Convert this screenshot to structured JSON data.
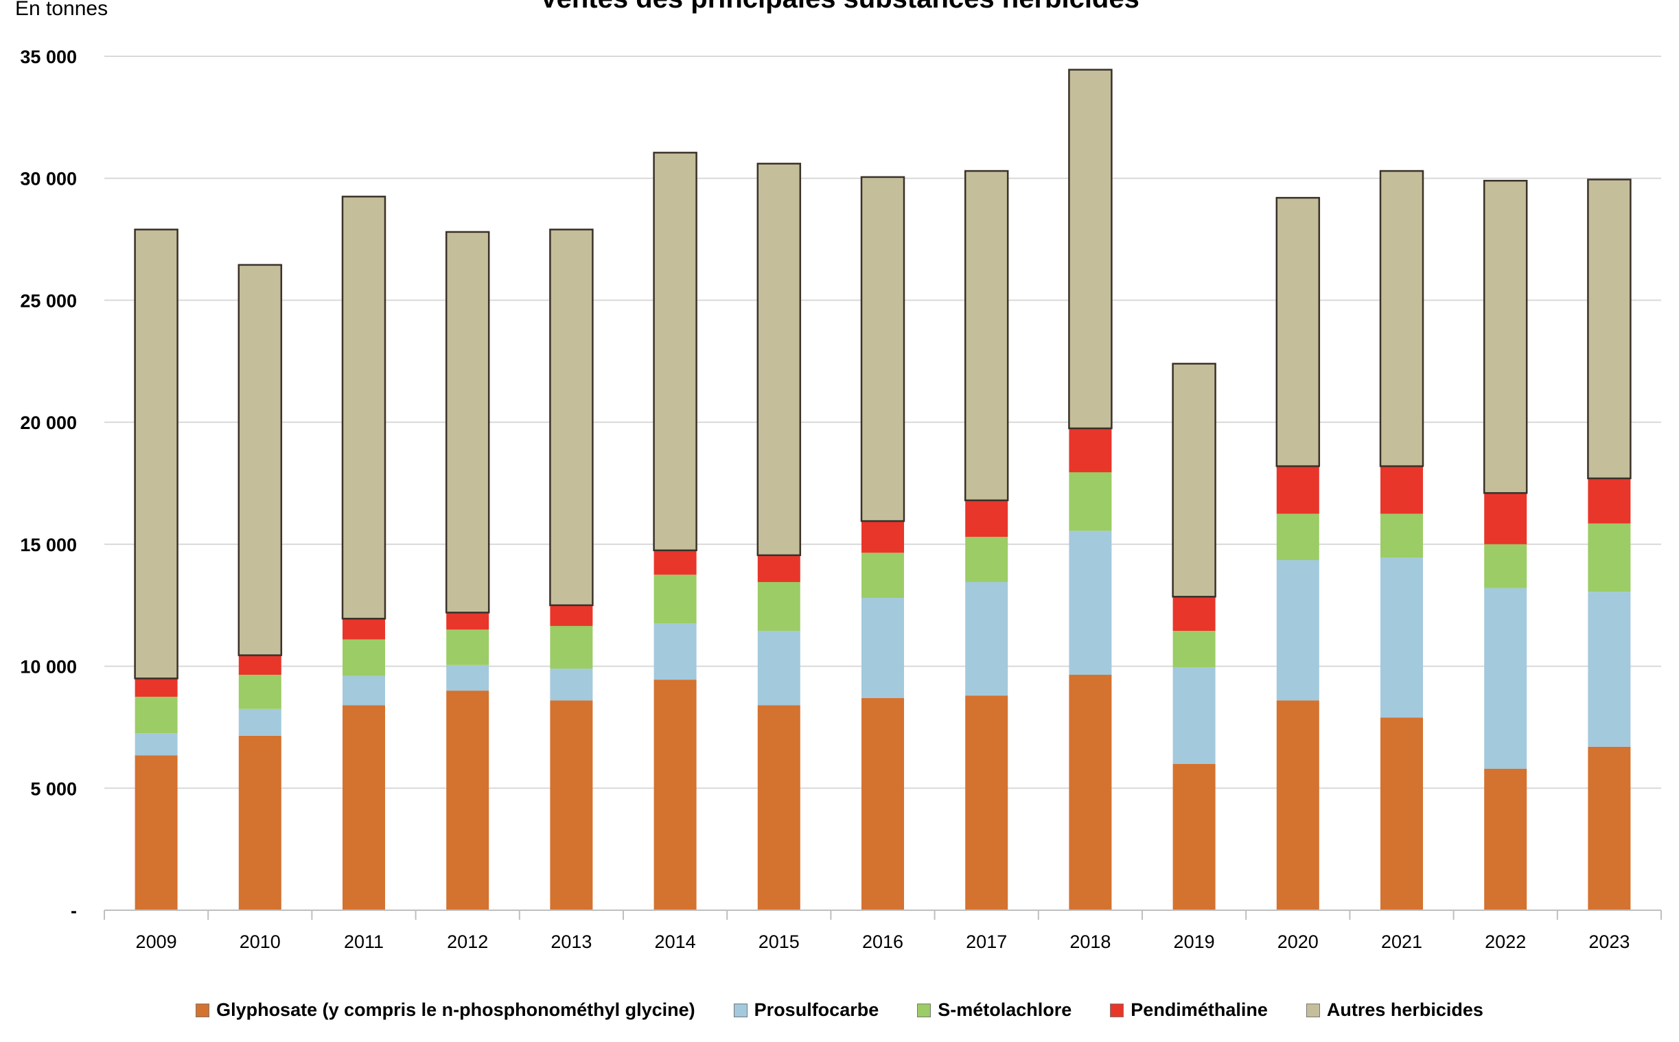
{
  "chart_data": {
    "type": "bar",
    "stacked": true,
    "title": "Ventes des principales substances herbicides",
    "ylabel": "En tonnes",
    "xlabel": "",
    "ylim": [
      0,
      35000
    ],
    "y_ticks": [
      0,
      5000,
      10000,
      15000,
      20000,
      25000,
      30000,
      35000
    ],
    "y_tick_labels": [
      "-",
      "5 000",
      "10 000",
      "15 000",
      "20 000",
      "25 000",
      "30 000",
      "35 000"
    ],
    "grid": true,
    "legend_position": "bottom",
    "categories": [
      "2009",
      "2010",
      "2011",
      "2012",
      "2013",
      "2014",
      "2015",
      "2016",
      "2017",
      "2018",
      "2019",
      "2020",
      "2021",
      "2022",
      "2023"
    ],
    "series": [
      {
        "name": "Glyphosate (y compris le n-phosphonométhyl glycine)",
        "color": "#D4722F",
        "values": [
          6350,
          7150,
          8400,
          9000,
          8600,
          9450,
          8400,
          8700,
          8800,
          9650,
          6000,
          8600,
          7900,
          5800,
          6700
        ]
      },
      {
        "name": "Prosulfocarbe",
        "color": "#A3C9DD",
        "values": [
          900,
          1100,
          1200,
          1050,
          1300,
          2300,
          3050,
          4100,
          4650,
          5900,
          3950,
          5750,
          6550,
          7400,
          6350
        ]
      },
      {
        "name": "S-métolachlore",
        "color": "#9CCC65",
        "values": [
          1500,
          1400,
          1500,
          1450,
          1750,
          2000,
          2000,
          1850,
          1850,
          2400,
          1500,
          1900,
          1800,
          1800,
          2800
        ]
      },
      {
        "name": "Pendiméthaline",
        "color": "#E8362B",
        "values": [
          750,
          800,
          850,
          700,
          850,
          1000,
          1100,
          1300,
          1500,
          1800,
          1400,
          1950,
          1950,
          2100,
          1850
        ]
      },
      {
        "name": "Autres herbicides",
        "color": "#C4BE9B",
        "values": [
          18400,
          16000,
          17300,
          15600,
          15400,
          16300,
          16050,
          14100,
          13500,
          14700,
          9550,
          11000,
          12100,
          12800,
          12250
        ]
      }
    ]
  }
}
